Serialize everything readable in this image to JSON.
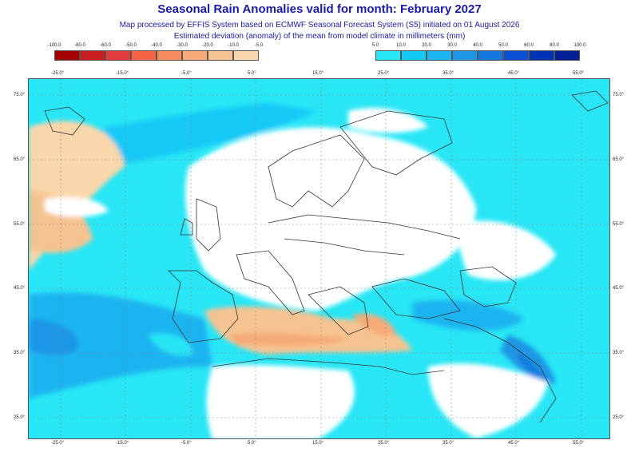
{
  "header": {
    "title": "Seasonal Rain Anomalies valid for month: February 2027",
    "subtitle1": "Map processed by EFFIS System based on ECMWF Seasonal Forecast System (S5) initiated on 01 August 2026",
    "subtitle2": "Estimated deviation (anomaly) of the mean from model climate in millimeters (mm)"
  },
  "legend_negative": {
    "labels": [
      "-100.0",
      "-80.0",
      "-60.0",
      "-50.0",
      "-40.0",
      "-30.0",
      "-20.0",
      "-10.0",
      "-5.0"
    ],
    "colors": [
      "#a50000",
      "#c81e1e",
      "#e13c3c",
      "#f56446",
      "#f58c5f",
      "#f5aa78",
      "#f5c391",
      "#fad7aa"
    ]
  },
  "legend_positive": {
    "labels": [
      "5.0",
      "10.0",
      "20.0",
      "30.0",
      "40.0",
      "50.0",
      "60.0",
      "80.0",
      "100.0"
    ],
    "colors": [
      "#28e6f5",
      "#14c8f5",
      "#1eb4f0",
      "#1e96e6",
      "#1478dc",
      "#0a50d2",
      "#0032b4",
      "#001e96"
    ]
  },
  "axes": {
    "lon_labels": [
      "-25.0°",
      "-15.0°",
      "-5.0°",
      "5.0°",
      "15.0°",
      "25.0°",
      "35.0°",
      "45.0°",
      "55.0°"
    ],
    "lat_labels": [
      "75.0°",
      "65.0°",
      "55.0°",
      "45.0°",
      "35.0°",
      "25.0°"
    ]
  },
  "map_colors": {
    "land_neutral": "#ffffff",
    "border": "#333333",
    "grid": "#888888"
  }
}
